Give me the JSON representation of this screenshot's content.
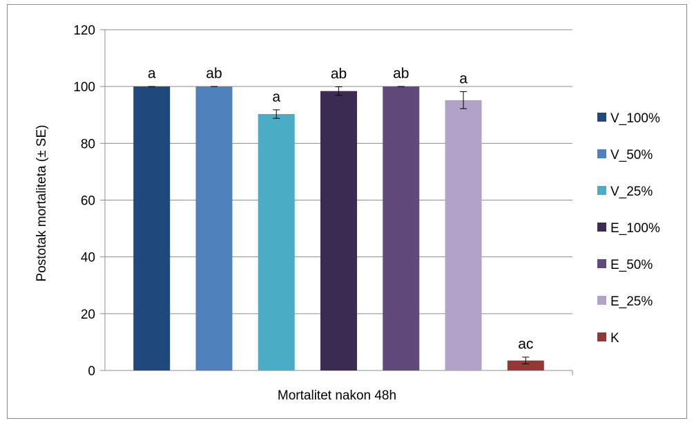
{
  "chart_data": {
    "type": "bar",
    "xlabel": "Mortalitet nakon 48h",
    "ylabel": "Postotak mortaliteta (± SE)",
    "ylim": [
      0,
      120
    ],
    "yticks": [
      0,
      20,
      40,
      60,
      80,
      100,
      120
    ],
    "grid": true,
    "legend_position": "right",
    "series": [
      {
        "name": "V_100%",
        "value": 100,
        "se": 0,
        "label": "a",
        "color": "#1f497d"
      },
      {
        "name": "V_50%",
        "value": 100,
        "se": 0,
        "label": "ab",
        "color": "#4f81bd"
      },
      {
        "name": "V_25%",
        "value": 90.3,
        "se": 1.5,
        "label": "a",
        "color": "#4bacc6"
      },
      {
        "name": "E_100%",
        "value": 98.4,
        "se": 1.5,
        "label": "ab",
        "color": "#3c2c54"
      },
      {
        "name": "E_50%",
        "value": 100,
        "se": 0,
        "label": "ab",
        "color": "#604a7b"
      },
      {
        "name": "E_25%",
        "value": 95.2,
        "se": 3.0,
        "label": "a",
        "color": "#b2a2c7"
      },
      {
        "name": "K",
        "value": 3.5,
        "se": 1.2,
        "label": "ac",
        "color": "#953735"
      }
    ]
  }
}
